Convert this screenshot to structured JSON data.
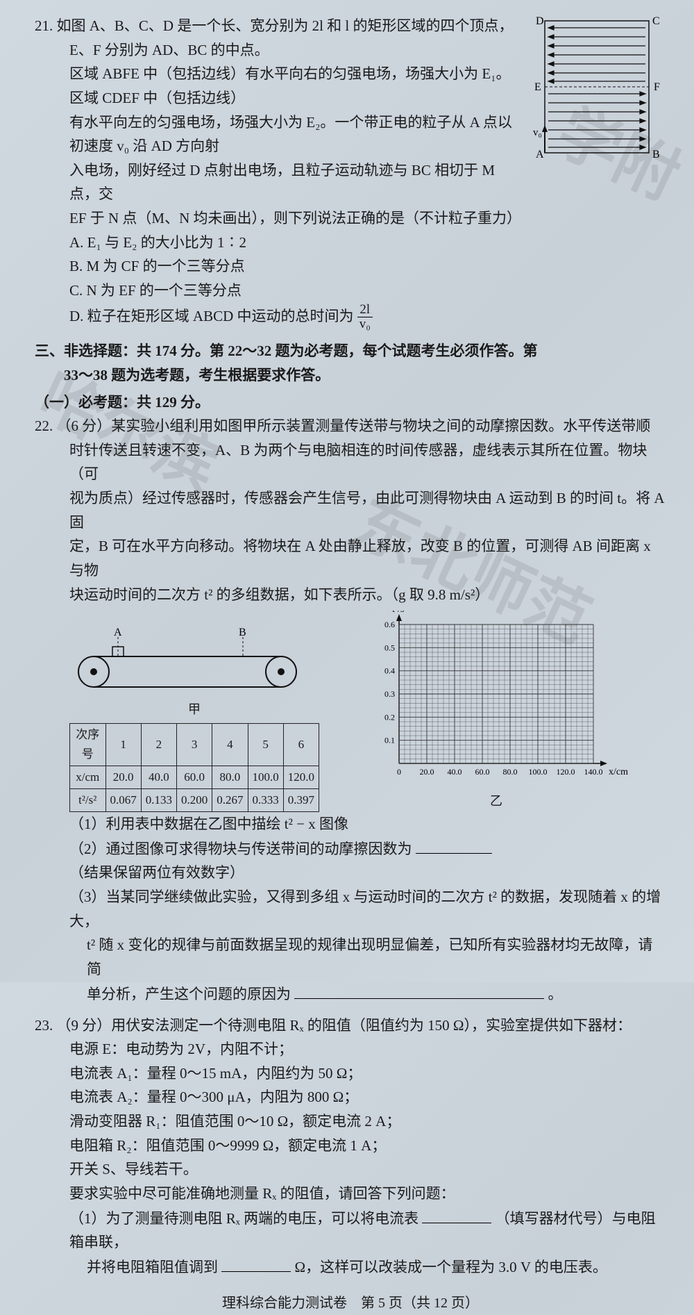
{
  "q21": {
    "num": "21.",
    "line1": "如图 A、B、C、D 是一个长、宽分别为 2l 和 l 的矩形区域的四个顶点，E、F 分别为 AD、BC 的中点。",
    "line2": "区域 ABFE 中（包括边线）有水平向右的匀强电场，场强大小为 E₁。区域 CDEF 中（包括边线）",
    "line3": "有水平向左的匀强电场，场强大小为 E₂。一个带正电的粒子从 A 点以初速度 v₀ 沿 AD 方向射",
    "line4": "入电场，刚好经过 D 点射出电场，且粒子运动轨迹与 BC 相切于 M 点，交",
    "line5": "EF 于 N 点（M、N 均未画出），则下列说法正确的是（不计粒子重力）",
    "optA": "A. E₁ 与 E₂ 的大小比为 1∶2",
    "optB": "B. M 为 CF 的一个三等分点",
    "optC": "C. N 为 EF 的一个三等分点",
    "optD_pre": "D. 粒子在矩形区域 ABCD 中运动的总时间为",
    "frac_num": "2l",
    "frac_den": "v₀",
    "diagram": {
      "labels": {
        "A": "A",
        "B": "B",
        "C": "C",
        "D": "D",
        "E": "E",
        "F": "F",
        "v0": "v₀"
      },
      "stroke": "#111"
    }
  },
  "section3": {
    "title1": "三、非选择题：共 174 分。第 22～32 题为必考题，每个试题考生必须作答。第",
    "title2": "33～38 题为选考题，考生根据要求作答。",
    "sub": "（一）必考题：共 129 分。"
  },
  "q22": {
    "num": "22.",
    "line1": "（6 分）某实验小组利用如图甲所示装置测量传送带与物块之间的动摩擦因数。水平传送带顺",
    "line2": "时针传送且转速不变，A、B 为两个与电脑相连的时间传感器，虚线表示其所在位置。物块（可",
    "line3": "视为质点）经过传感器时，传感器会产生信号，由此可测得物块由 A 运动到 B 的时间 t。将 A 固",
    "line4": "定，B 可在水平方向移动。将物块在 A 处由静止释放，改变 B 的位置，可测得 AB 间距离 x 与物",
    "line5": "块运动时间的二次方 t² 的多组数据，如下表所示。（g 取 9.8 m/s²）",
    "conveyor_labels": {
      "A": "A",
      "B": "B",
      "caption": "甲"
    },
    "table": {
      "header_label": "次序号",
      "cols": [
        "1",
        "2",
        "3",
        "4",
        "5",
        "6"
      ],
      "rows": [
        {
          "label": "x/cm",
          "vals": [
            "20.0",
            "40.0",
            "60.0",
            "80.0",
            "100.0",
            "120.0"
          ]
        },
        {
          "label": "t²/s²",
          "vals": [
            "0.067",
            "0.133",
            "0.200",
            "0.267",
            "0.333",
            "0.397"
          ]
        }
      ]
    },
    "graph": {
      "ylabel": "t²/s²",
      "xlabel": "x/cm",
      "caption": "乙",
      "yticks": [
        "0.1",
        "0.2",
        "0.3",
        "0.4",
        "0.5",
        "0.6"
      ],
      "xticks": [
        "20.0",
        "40.0",
        "60.0",
        "80.0",
        "100.0",
        "120.0",
        "140.0"
      ],
      "grid_color": "#333",
      "bg": "#c9d2db"
    },
    "part1": "（1）利用表中数据在乙图中描绘 t² − x 图像",
    "part2_pre": "（2）通过图像可求得物块与传送带间的动摩擦因数为",
    "part2_post": "（结果保留两位有效数字）",
    "part3a": "（3）当某同学继续做此实验，又得到多组 x 与运动时间的二次方 t² 的数据，发现随着 x 的增大，",
    "part3b": "t² 随 x 变化的规律与前面数据呈现的规律出现明显偏差，已知所有实验器材均无故障，请简",
    "part3c_pre": "单分析，产生这个问题的原因为",
    "part3c_post": "。"
  },
  "q23": {
    "num": "23.",
    "line1": "（9 分）用伏安法测定一个待测电阻 Rₓ 的阻值（阻值约为 150 Ω），实验室提供如下器材：",
    "items": [
      "电源 E：电动势为 2V，内阻不计；",
      "电流表 A₁：量程 0～15 mA，内阻约为 50 Ω；",
      "电流表 A₂：量程 0～300 μA，内阻为 800 Ω；",
      "滑动变阻器 R₁：阻值范围 0～10 Ω，额定电流 2 A；",
      "电阻箱 R₂：阻值范围 0～9999 Ω，额定电流 1 A；",
      "开关 S、导线若干。"
    ],
    "ask": "要求实验中尽可能准确地测量 Rₓ 的阻值，请回答下列问题：",
    "p1a": "（1）为了测量待测电阻 Rₓ 两端的电压，可以将电流表",
    "p1b": "（填写器材代号）与电阻箱串联，",
    "p1c_pre": "并将电阻箱阻值调到",
    "p1c_post": "Ω，这样可以改装成一个量程为 3.0 V 的电压表。"
  },
  "footer": "理科综合能力测试卷　第 5 页（共 12 页）",
  "watermarks": {
    "wm1": "哈尔滨",
    "wm2": "东北师范",
    "wm3": "学附"
  },
  "colors": {
    "text": "#1a1a1a",
    "bg": "#d0d8e0"
  }
}
